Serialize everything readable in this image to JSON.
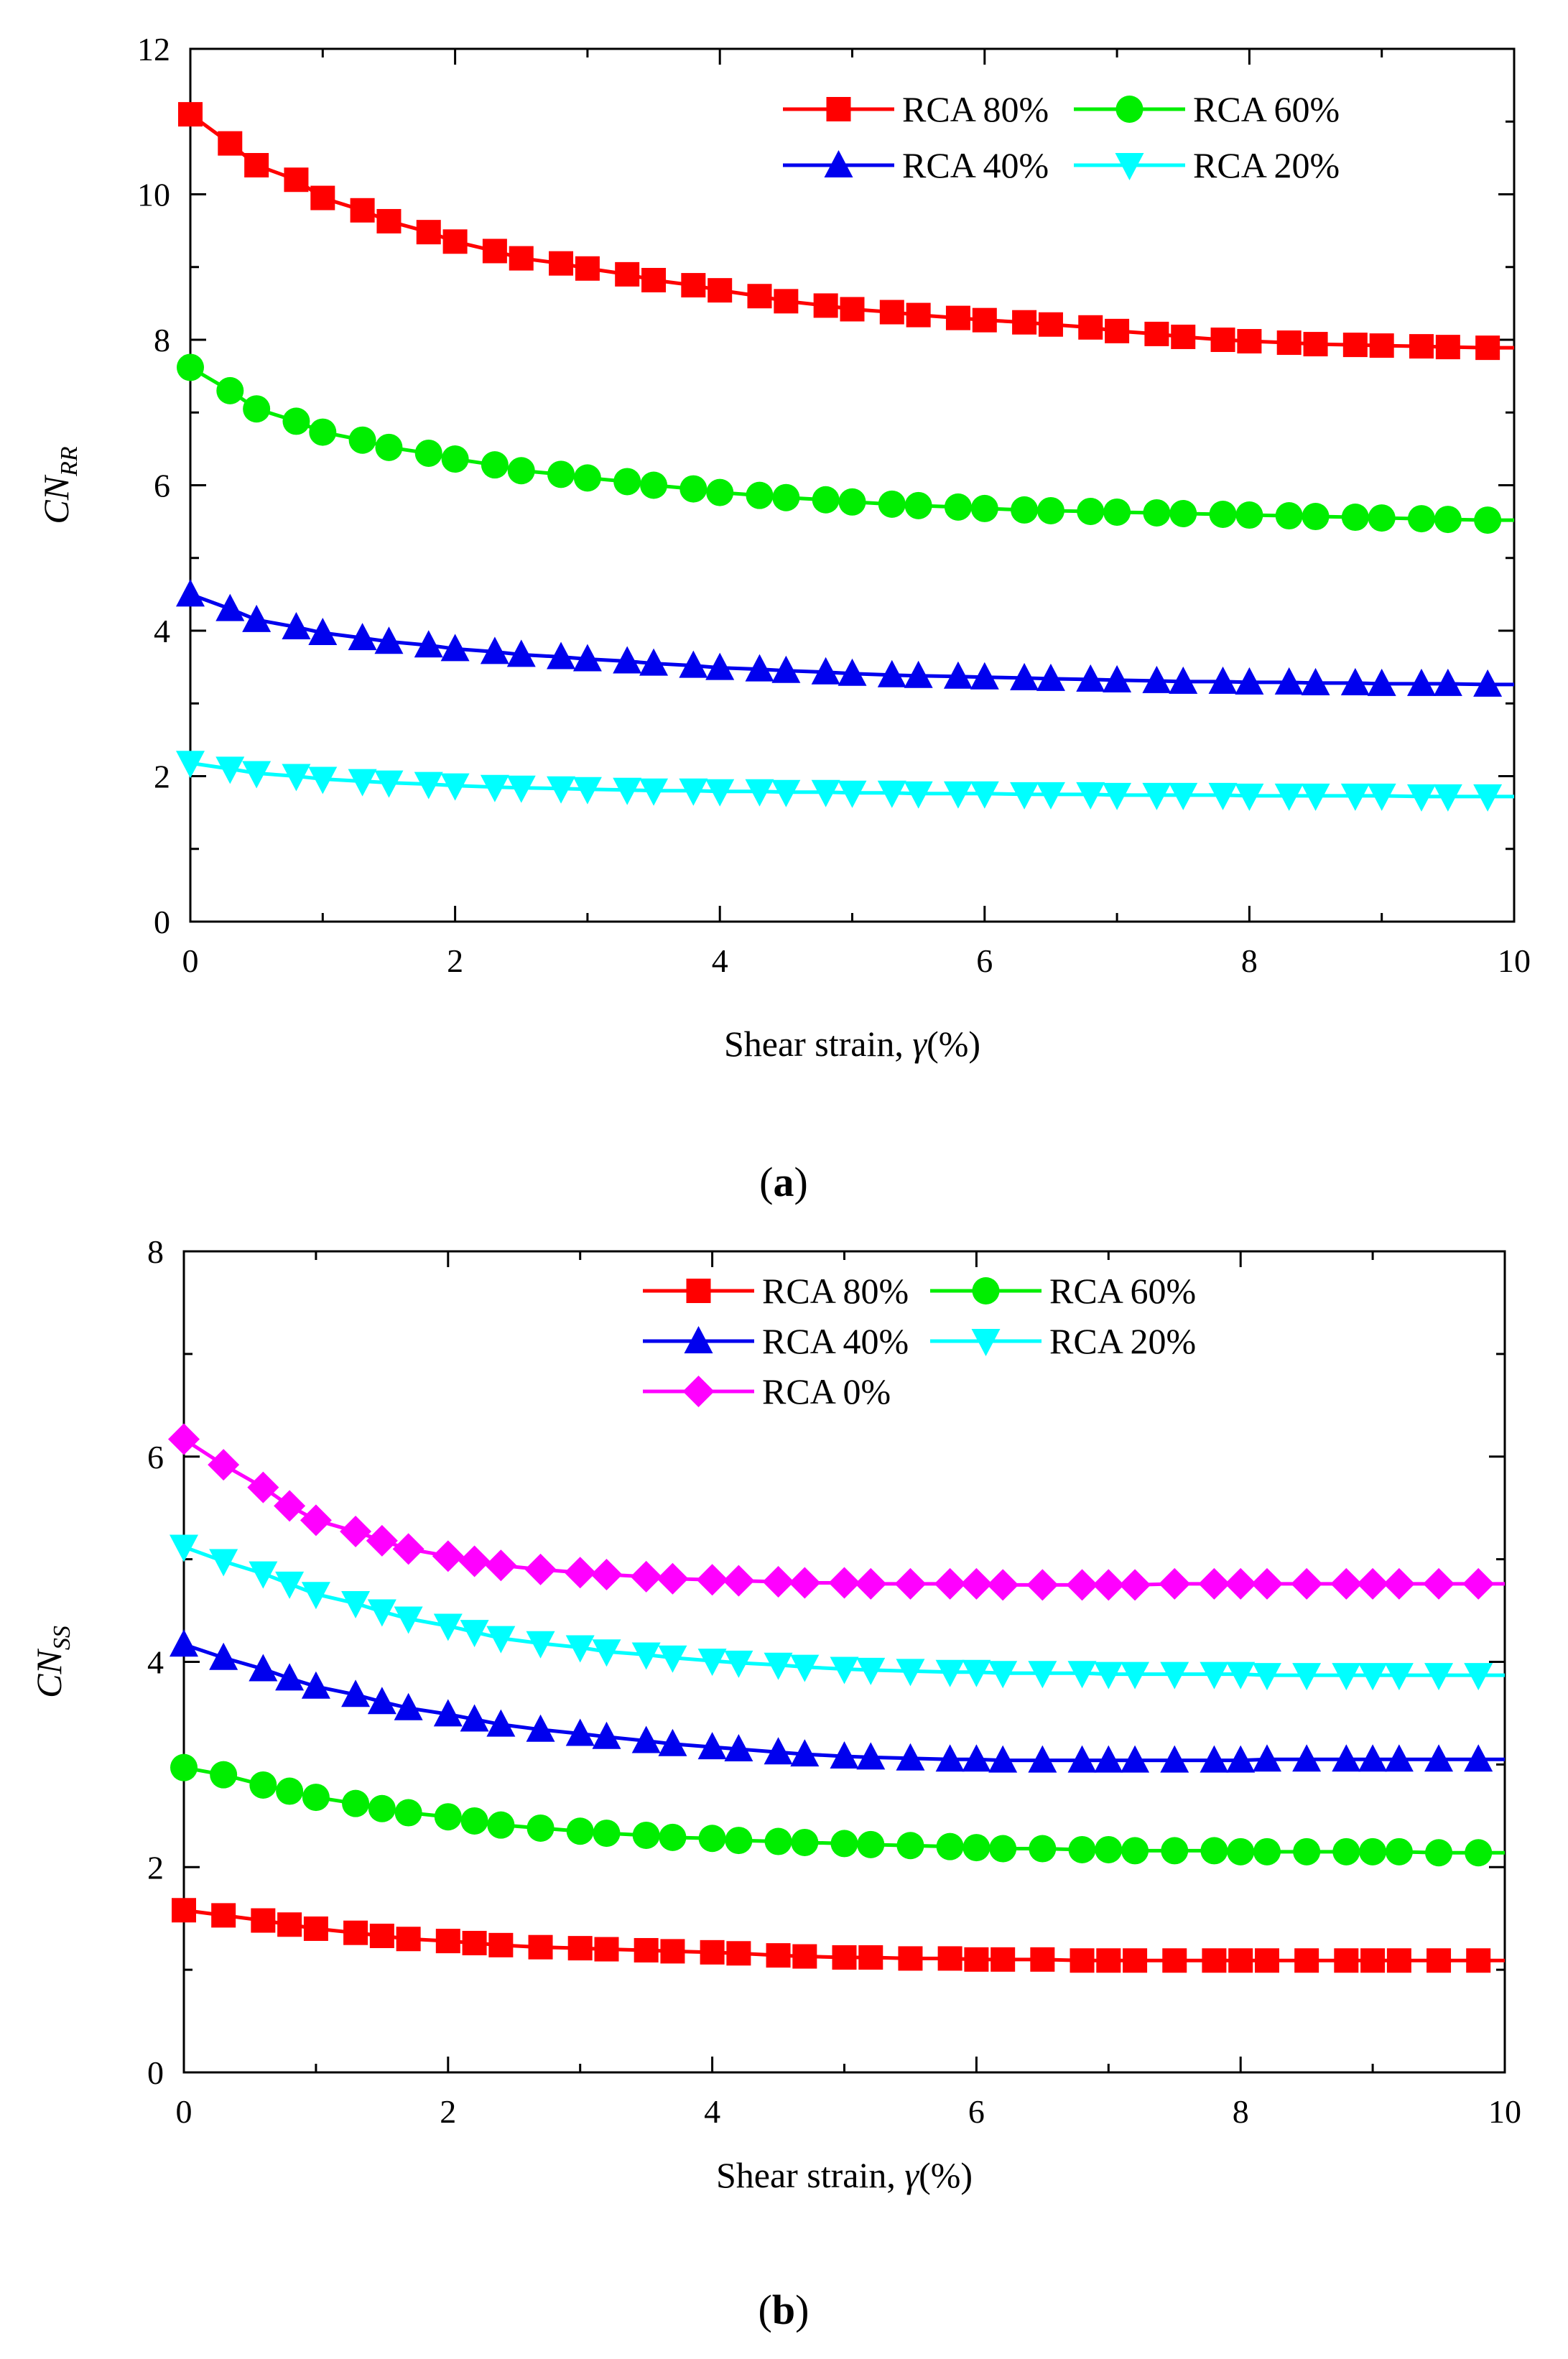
{
  "chart_data": [
    {
      "type": "line",
      "panel_label": "a",
      "xlabel": "Shear strain,",
      "xlabel_symbol": "γ",
      "xlabel_unit": "(%)",
      "ylabel_main": "CN",
      "ylabel_sub": "RR",
      "xlim": [
        0,
        10
      ],
      "ylim": [
        0,
        12
      ],
      "xticks": [
        "0",
        "2",
        "4",
        "6",
        "8",
        "10"
      ],
      "yticks": [
        "0",
        "2",
        "4",
        "6",
        "8",
        "10",
        "12"
      ],
      "legend_position": "top-right",
      "legend_columns": 2,
      "x": [
        0.0,
        0.3,
        0.5,
        0.8,
        1.0,
        1.3,
        1.5,
        1.8,
        2.0,
        2.3,
        2.5,
        2.8,
        3.0,
        3.3,
        3.5,
        3.8,
        4.0,
        4.3,
        4.5,
        4.8,
        5.0,
        5.3,
        5.5,
        5.8,
        6.0,
        6.3,
        6.5,
        6.8,
        7.0,
        7.3,
        7.5,
        7.8,
        8.0,
        8.3,
        8.5,
        8.8,
        9.0,
        9.3,
        9.5,
        9.8
      ],
      "series": [
        {
          "name": "RCA 80%",
          "color": "#ff0000",
          "marker": "square",
          "values": [
            11.1,
            10.7,
            10.4,
            10.2,
            9.95,
            9.78,
            9.63,
            9.48,
            9.35,
            9.22,
            9.12,
            9.05,
            8.98,
            8.9,
            8.82,
            8.75,
            8.68,
            8.6,
            8.53,
            8.47,
            8.42,
            8.38,
            8.34,
            8.3,
            8.27,
            8.24,
            8.21,
            8.17,
            8.12,
            8.08,
            8.04,
            8.0,
            7.98,
            7.96,
            7.94,
            7.93,
            7.92,
            7.91,
            7.9,
            7.89
          ]
        },
        {
          "name": "RCA 60%",
          "color": "#00ee00",
          "marker": "circle",
          "values": [
            7.62,
            7.3,
            7.05,
            6.88,
            6.73,
            6.62,
            6.52,
            6.44,
            6.36,
            6.28,
            6.2,
            6.15,
            6.1,
            6.05,
            6.0,
            5.95,
            5.9,
            5.86,
            5.83,
            5.8,
            5.77,
            5.74,
            5.72,
            5.7,
            5.68,
            5.66,
            5.65,
            5.64,
            5.63,
            5.62,
            5.61,
            5.6,
            5.59,
            5.58,
            5.57,
            5.56,
            5.55,
            5.54,
            5.53,
            5.52
          ]
        },
        {
          "name": "RCA 40%",
          "color": "#0000ee",
          "marker": "triangle-up",
          "values": [
            4.5,
            4.3,
            4.15,
            4.05,
            3.97,
            3.9,
            3.85,
            3.8,
            3.75,
            3.71,
            3.67,
            3.64,
            3.61,
            3.58,
            3.55,
            3.52,
            3.49,
            3.47,
            3.45,
            3.43,
            3.41,
            3.39,
            3.38,
            3.37,
            3.36,
            3.35,
            3.34,
            3.33,
            3.32,
            3.31,
            3.3,
            3.3,
            3.29,
            3.29,
            3.28,
            3.28,
            3.27,
            3.27,
            3.27,
            3.26
          ]
        },
        {
          "name": "RCA 20%",
          "color": "#00ffff",
          "marker": "triangle-down",
          "values": [
            2.18,
            2.1,
            2.04,
            2.0,
            1.96,
            1.93,
            1.91,
            1.89,
            1.87,
            1.85,
            1.84,
            1.83,
            1.82,
            1.81,
            1.8,
            1.8,
            1.79,
            1.79,
            1.78,
            1.78,
            1.77,
            1.77,
            1.76,
            1.76,
            1.76,
            1.75,
            1.75,
            1.75,
            1.74,
            1.74,
            1.74,
            1.74,
            1.73,
            1.73,
            1.73,
            1.73,
            1.73,
            1.72,
            1.72,
            1.72
          ]
        }
      ]
    },
    {
      "type": "line",
      "panel_label": "b",
      "xlabel": "Shear strain,",
      "xlabel_symbol": "γ",
      "xlabel_unit": "(%)",
      "ylabel_main": "CN",
      "ylabel_sub": "SS",
      "xlim": [
        0,
        10
      ],
      "ylim": [
        0,
        8
      ],
      "xticks": [
        "0",
        "2",
        "4",
        "6",
        "8",
        "10"
      ],
      "yticks": [
        "0",
        "2",
        "4",
        "6",
        "8"
      ],
      "legend_position": "top-right",
      "legend_columns": 2,
      "x": [
        0.0,
        0.3,
        0.6,
        0.8,
        1.0,
        1.3,
        1.5,
        1.7,
        2.0,
        2.2,
        2.4,
        2.7,
        3.0,
        3.2,
        3.5,
        3.7,
        4.0,
        4.2,
        4.5,
        4.7,
        5.0,
        5.2,
        5.5,
        5.8,
        6.0,
        6.2,
        6.5,
        6.8,
        7.0,
        7.2,
        7.5,
        7.8,
        8.0,
        8.2,
        8.5,
        8.8,
        9.0,
        9.2,
        9.5,
        9.8
      ],
      "series": [
        {
          "name": "RCA 80%",
          "color": "#ff0000",
          "marker": "square",
          "values": [
            1.58,
            1.53,
            1.48,
            1.44,
            1.4,
            1.36,
            1.33,
            1.3,
            1.28,
            1.26,
            1.24,
            1.22,
            1.21,
            1.2,
            1.19,
            1.18,
            1.17,
            1.16,
            1.14,
            1.13,
            1.12,
            1.12,
            1.11,
            1.11,
            1.1,
            1.1,
            1.1,
            1.09,
            1.09,
            1.09,
            1.09,
            1.09,
            1.09,
            1.09,
            1.09,
            1.09,
            1.09,
            1.09,
            1.09,
            1.09
          ]
        },
        {
          "name": "RCA 60%",
          "color": "#00ee00",
          "marker": "circle",
          "values": [
            2.97,
            2.9,
            2.8,
            2.74,
            2.68,
            2.62,
            2.57,
            2.53,
            2.49,
            2.45,
            2.41,
            2.38,
            2.35,
            2.33,
            2.31,
            2.29,
            2.28,
            2.26,
            2.25,
            2.24,
            2.23,
            2.22,
            2.21,
            2.2,
            2.19,
            2.18,
            2.18,
            2.17,
            2.17,
            2.16,
            2.16,
            2.16,
            2.15,
            2.15,
            2.15,
            2.15,
            2.15,
            2.15,
            2.14,
            2.14
          ]
        },
        {
          "name": "RCA 40%",
          "color": "#0000ee",
          "marker": "triangle-up",
          "values": [
            4.17,
            4.04,
            3.93,
            3.84,
            3.76,
            3.68,
            3.61,
            3.55,
            3.49,
            3.44,
            3.39,
            3.34,
            3.3,
            3.27,
            3.23,
            3.2,
            3.17,
            3.15,
            3.12,
            3.1,
            3.08,
            3.07,
            3.06,
            3.05,
            3.05,
            3.04,
            3.04,
            3.04,
            3.04,
            3.04,
            3.04,
            3.04,
            3.04,
            3.05,
            3.05,
            3.05,
            3.05,
            3.05,
            3.05,
            3.05
          ]
        },
        {
          "name": "RCA 20%",
          "color": "#00ffff",
          "marker": "triangle-down",
          "values": [
            5.12,
            4.98,
            4.86,
            4.76,
            4.66,
            4.57,
            4.49,
            4.42,
            4.35,
            4.29,
            4.23,
            4.18,
            4.14,
            4.1,
            4.07,
            4.04,
            4.01,
            3.99,
            3.97,
            3.95,
            3.93,
            3.92,
            3.91,
            3.9,
            3.9,
            3.89,
            3.89,
            3.89,
            3.88,
            3.88,
            3.88,
            3.88,
            3.88,
            3.87,
            3.87,
            3.87,
            3.87,
            3.87,
            3.87,
            3.87
          ]
        },
        {
          "name": "RCA 0%",
          "color": "#ff00ff",
          "marker": "diamond",
          "values": [
            6.17,
            5.92,
            5.7,
            5.52,
            5.38,
            5.27,
            5.18,
            5.1,
            5.03,
            4.98,
            4.94,
            4.9,
            4.87,
            4.85,
            4.83,
            4.81,
            4.8,
            4.79,
            4.78,
            4.77,
            4.77,
            4.76,
            4.76,
            4.76,
            4.76,
            4.75,
            4.75,
            4.75,
            4.75,
            4.75,
            4.76,
            4.76,
            4.76,
            4.76,
            4.76,
            4.76,
            4.76,
            4.76,
            4.76,
            4.76
          ]
        }
      ]
    }
  ]
}
